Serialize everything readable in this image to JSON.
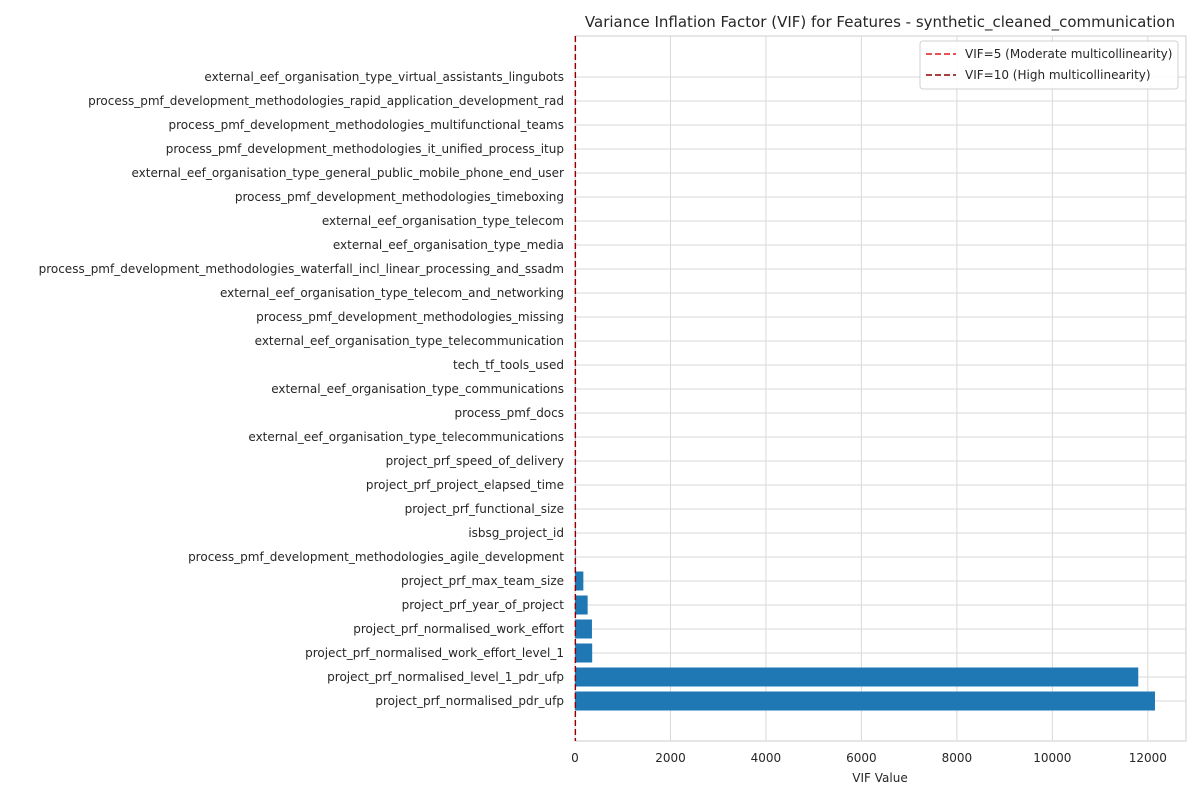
{
  "chart_data": {
    "type": "bar",
    "orientation": "horizontal",
    "title": "Variance Inflation Factor (VIF) for Features - synthetic_cleaned_communication",
    "xlabel": "VIF Value",
    "ylabel": "",
    "xlim": [
      0,
      12800
    ],
    "xticks": [
      0,
      2000,
      4000,
      6000,
      8000,
      10000,
      12000
    ],
    "grid": true,
    "legend_position": "top-right",
    "bar_color": "#1f77b4",
    "categories": [
      "project_prf_normalised_pdr_ufp",
      "project_prf_normalised_level_1_pdr_ufp",
      "project_prf_normalised_work_effort_level_1",
      "project_prf_normalised_work_effort",
      "project_prf_year_of_project",
      "project_prf_max_team_size",
      "process_pmf_development_methodologies_agile_development",
      "isbsg_project_id",
      "project_prf_functional_size",
      "project_prf_project_elapsed_time",
      "project_prf_speed_of_delivery",
      "external_eef_organisation_type_telecommunications",
      "process_pmf_docs",
      "external_eef_organisation_type_communications",
      "tech_tf_tools_used",
      "external_eef_organisation_type_telecommunication",
      "process_pmf_development_methodologies_missing",
      "external_eef_organisation_type_telecom_and_networking",
      "process_pmf_development_methodologies_waterfall_incl_linear_processing_and_ssadm",
      "external_eef_organisation_type_media",
      "external_eef_organisation_type_telecom",
      "process_pmf_development_methodologies_timeboxing",
      "external_eef_organisation_type_general_public_mobile_phone_end_user",
      "process_pmf_development_methodologies_it_unified_process_itup",
      "process_pmf_development_methodologies_multifunctional_teams",
      "process_pmf_development_methodologies_rapid_application_development_rad",
      "external_eef_organisation_type_virtual_assistants_lingubots"
    ],
    "values": [
      12150,
      11800,
      360,
      355,
      265,
      175,
      12,
      10,
      9,
      8,
      7,
      6,
      5,
      5,
      4,
      4,
      4,
      3,
      3,
      3,
      3,
      2,
      2,
      2,
      2,
      2,
      2
    ],
    "reference_lines": [
      {
        "value": 5,
        "label": "VIF=5 (Moderate multicollinearity)",
        "color": "#e41a1c",
        "style": "dashed"
      },
      {
        "value": 10,
        "label": "VIF=10 (High multicollinearity)",
        "color": "#8b0000",
        "style": "dashed"
      }
    ]
  }
}
